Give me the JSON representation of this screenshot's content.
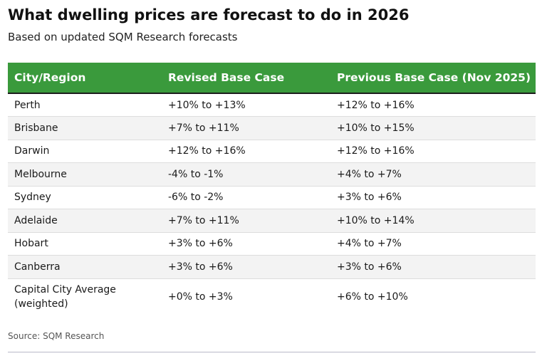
{
  "header": {
    "title": "What dwelling prices are forecast to do in 2026",
    "subtitle": "Based on updated SQM Research forecasts"
  },
  "table": {
    "columns": [
      "City/Region",
      "Revised Base Case",
      "Previous Base Case (Nov 2025)"
    ],
    "rows": [
      {
        "city": "Perth",
        "revised": "+10% to +13%",
        "previous": "+12% to +16%"
      },
      {
        "city": "Brisbane",
        "revised": "+7% to +11%",
        "previous": "+10% to +15%"
      },
      {
        "city": "Darwin",
        "revised": "+12% to +16%",
        "previous": "+12% to +16%"
      },
      {
        "city": "Melbourne",
        "revised": "-4% to -1%",
        "previous": "+4% to +7%"
      },
      {
        "city": "Sydney",
        "revised": "-6% to -2%",
        "previous": "+3% to +6%"
      },
      {
        "city": "Adelaide",
        "revised": "+7% to +11%",
        "previous": "+10% to +14%"
      },
      {
        "city": "Hobart",
        "revised": "+3% to +6%",
        "previous": "+4% to +7%"
      },
      {
        "city": "Canberra",
        "revised": "+3% to +6%",
        "previous": "+3% to +6%"
      },
      {
        "city": "Capital City Average (weighted)",
        "revised": "+0% to +3%",
        "previous": "+6% to +10%"
      }
    ]
  },
  "footer": {
    "source": "Source: SQM Research"
  },
  "colors": {
    "header_bg": "#3a9a3c",
    "header_text": "#ffffff",
    "stripe": "#f3f3f3"
  }
}
